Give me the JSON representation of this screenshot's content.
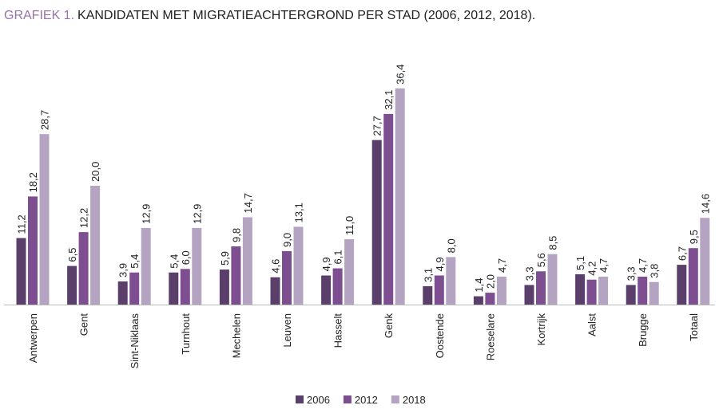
{
  "chart_data": {
    "type": "bar",
    "title_label": "GRAFIEK 1.",
    "title": "KANDIDATEN MET MIGRATIEACHTERGROND PER STAD (2006, 2012, 2018).",
    "categories": [
      "Antwerpen",
      "Gent",
      "Sint-Niklaas",
      "Turnhout",
      "Mechelen",
      "Leuven",
      "Hasselt",
      "Genk",
      "Oostende",
      "Roeselare",
      "Kortrijk",
      "Aalst",
      "Brugge",
      "Totaal"
    ],
    "series": [
      {
        "name": "2006",
        "color": "#5b3f6b",
        "values": [
          11.2,
          6.5,
          3.9,
          5.4,
          5.9,
          4.6,
          4.9,
          27.7,
          3.1,
          1.4,
          3.3,
          5.1,
          3.3,
          6.7
        ],
        "value_labels": [
          "11,2",
          "6,5",
          "3,9",
          "5,4",
          "5,9",
          "4,6",
          "4,9",
          "27,7",
          "3,1",
          "1,4",
          "3,3",
          "5,1",
          "3,3",
          "6,7"
        ]
      },
      {
        "name": "2012",
        "color": "#7d4f90",
        "values": [
          18.2,
          12.2,
          5.4,
          6.0,
          9.8,
          9.0,
          6.1,
          32.1,
          4.9,
          2.0,
          5.6,
          4.2,
          4.7,
          9.5
        ],
        "value_labels": [
          "18,2",
          "12,2",
          "5,4",
          "6,0",
          "9,8",
          "9,0",
          "6,1",
          "32,1",
          "4,9",
          "2,0",
          "5,6",
          "4,2",
          "4,7",
          "9,5"
        ]
      },
      {
        "name": "2018",
        "color": "#b4a4c1",
        "values": [
          28.7,
          20.0,
          12.9,
          12.9,
          14.7,
          13.1,
          11.0,
          36.4,
          8.0,
          4.7,
          8.5,
          4.7,
          3.8,
          14.6
        ],
        "value_labels": [
          "28,7",
          "20,0",
          "12,9",
          "12,9",
          "14,7",
          "13,1",
          "11,0",
          "36,4",
          "8,0",
          "4,7",
          "8,5",
          "4,7",
          "3,8",
          "14,6"
        ]
      }
    ]
  }
}
